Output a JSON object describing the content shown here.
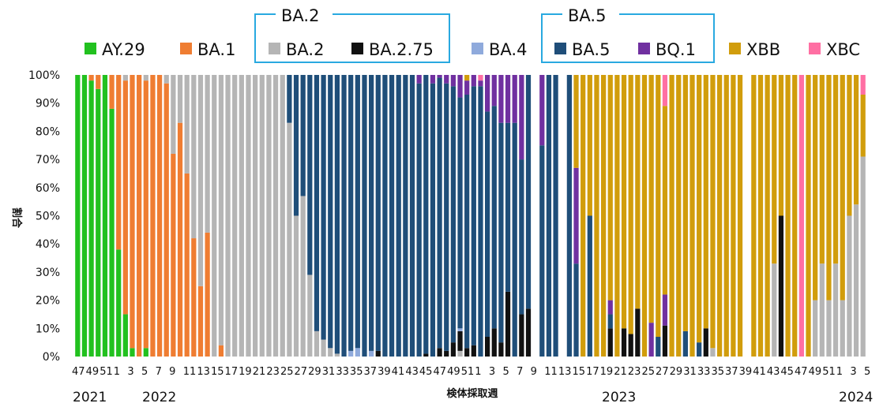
{
  "chart_data": {
    "type": "bar",
    "stacked": true,
    "xlabel": "検体採取週",
    "ylabel": "割合",
    "ylim": [
      0,
      100
    ],
    "yticks": [
      "0%",
      "10%",
      "20%",
      "30%",
      "40%",
      "50%",
      "60%",
      "70%",
      "80%",
      "90%",
      "100%"
    ],
    "xtick_labels": [
      "47",
      "49",
      "51",
      "1",
      "3",
      "5",
      "7",
      "9",
      "11",
      "13",
      "15",
      "17",
      "19",
      "21",
      "23",
      "25",
      "27",
      "29",
      "31",
      "33",
      "35",
      "37",
      "39",
      "41",
      "43",
      "45",
      "47",
      "49",
      "51",
      "1",
      "3",
      "5",
      "7",
      "9",
      "11",
      "13",
      "15",
      "17",
      "19",
      "21",
      "23",
      "25",
      "27",
      "29",
      "31",
      "33",
      "35",
      "37",
      "39",
      "41",
      "43",
      "45",
      "47",
      "49",
      "51",
      "1",
      "3",
      "5"
    ],
    "years": [
      "2021",
      "2022",
      "2023",
      "2024"
    ],
    "groups": [
      {
        "label": "BA.2",
        "members": [
          "BA.2",
          "BA.2.75"
        ]
      },
      {
        "label": "BA.5",
        "members": [
          "BA.5",
          "BQ.1"
        ]
      }
    ],
    "series": [
      {
        "name": "AY.29",
        "color": "#22c11f"
      },
      {
        "name": "BA.1",
        "color": "#ef7d32"
      },
      {
        "name": "BA.2",
        "color": "#b5b5b5"
      },
      {
        "name": "BA.2.75",
        "color": "#111111"
      },
      {
        "name": "BA.4",
        "color": "#8faadc"
      },
      {
        "name": "BA.5",
        "color": "#1f4e79"
      },
      {
        "name": "BQ.1",
        "color": "#7030a0"
      },
      {
        "name": "XBB",
        "color": "#d19d0c"
      },
      {
        "name": "XBC",
        "color": "#ff6fa3"
      }
    ],
    "bars": [
      {
        "AY.29": 100
      },
      {
        "AY.29": 100
      },
      {
        "AY.29": 98,
        "BA.1": 2
      },
      {
        "AY.29": 95,
        "BA.1": 5
      },
      {
        "AY.29": 100
      },
      {
        "AY.29": 88,
        "BA.1": 12
      },
      {
        "AY.29": 38,
        "BA.1": 62
      },
      {
        "AY.29": 15,
        "BA.1": 83,
        "BA.2": 2
      },
      {
        "AY.29": 3,
        "BA.1": 97
      },
      {
        "BA.1": 100
      },
      {
        "AY.29": 3,
        "BA.1": 95,
        "BA.2": 2
      },
      {
        "BA.1": 100
      },
      {
        "BA.1": 100
      },
      {
        "BA.1": 97,
        "BA.2": 3
      },
      {
        "BA.1": 72,
        "BA.2": 28
      },
      {
        "BA.1": 83,
        "BA.2": 17
      },
      {
        "BA.1": 65,
        "BA.2": 35
      },
      {
        "BA.1": 42,
        "BA.2": 58
      },
      {
        "BA.1": 25,
        "BA.2": 75
      },
      {
        "BA.1": 44,
        "BA.2": 56
      },
      {
        "BA.2": 100
      },
      {
        "BA.1": 4,
        "BA.2": 96
      },
      {
        "BA.2": 100
      },
      {
        "BA.2": 100
      },
      {
        "BA.2": 100
      },
      {
        "BA.2": 100
      },
      {
        "BA.2": 100
      },
      {
        "BA.2": 100
      },
      {
        "BA.2": 100
      },
      {
        "BA.2": 100
      },
      {
        "BA.2": 100
      },
      {
        "BA.2": 83,
        "BA.5": 17
      },
      {
        "BA.2": 50,
        "BA.5": 50
      },
      {
        "BA.2": 57,
        "BA.5": 43
      },
      {
        "BA.2": 29,
        "BA.5": 71
      },
      {
        "BA.2": 9,
        "BA.5": 91
      },
      {
        "BA.2": 6,
        "BA.5": 94
      },
      {
        "BA.2": 3,
        "BA.5": 97
      },
      {
        "BA.2": 1,
        "BA.5": 99
      },
      {
        "BA.5": 100
      },
      {
        "BA.5": 98,
        "BA.4": 2
      },
      {
        "BA.5": 97,
        "BA.4": 3
      },
      {
        "BA.5": 100
      },
      {
        "BA.5": 98,
        "BA.4": 2
      },
      {
        "BA.5": 98,
        "BA.2.75": 2
      },
      {
        "BA.5": 100
      },
      {
        "BA.5": 100
      },
      {
        "BA.5": 100
      },
      {
        "BA.5": 100
      },
      {
        "BA.5": 100
      },
      {
        "BA.5": 97,
        "BQ.1": 3
      },
      {
        "BA.5": 99,
        "BA.2.75": 1
      },
      {
        "BA.5": 97,
        "BQ.1": 3
      },
      {
        "BA.5": 96,
        "BA.2.75": 3,
        "BQ.1": 1
      },
      {
        "BA.5": 95,
        "BA.2.75": 2,
        "BQ.1": 3
      },
      {
        "BA.5": 91,
        "BA.2.75": 5,
        "BQ.1": 4
      },
      {
        "BA.2": 2,
        "BA.5": 82,
        "BA.4": 1,
        "BA.2.75": 7,
        "BQ.1": 8
      },
      {
        "BA.5": 90,
        "BA.2.75": 3,
        "BQ.1": 5,
        "XBB": 2
      },
      {
        "BA.5": 92,
        "BA.2.75": 4,
        "BQ.1": 4
      },
      {
        "BA.5": 96,
        "BQ.1": 2,
        "XBC": 2
      },
      {
        "BA.5": 80,
        "BA.2.75": 7,
        "BQ.1": 13
      },
      {
        "BA.5": 79,
        "BA.2.75": 10,
        "BQ.1": 11
      },
      {
        "BA.5": 78,
        "BA.2.75": 5,
        "BQ.1": 17
      },
      {
        "BA.5": 60,
        "BA.2.75": 23,
        "BQ.1": 17
      },
      {
        "BA.5": 83,
        "BQ.1": 17
      },
      {
        "BA.5": 55,
        "BA.2.75": 15,
        "BQ.1": 30
      },
      {
        "BA.5": 83,
        "BA.2.75": 17
      },
      null,
      {
        "BA.5": 75,
        "BQ.1": 25
      },
      {
        "BA.5": 100
      },
      {
        "BA.5": 100
      },
      null,
      {
        "BA.5": 100
      },
      {
        "BA.5": 33,
        "BQ.1": 34,
        "XBB": 33
      },
      {
        "XBB": 100
      },
      {
        "BA.5": 50,
        "XBB": 50
      },
      {
        "XBB": 100
      },
      {
        "XBB": 100
      },
      {
        "BA.5": 5,
        "BA.2.75": 10,
        "BQ.1": 5,
        "XBB": 80
      },
      {
        "XBB": 100
      },
      {
        "BA.2.75": 10,
        "XBB": 90
      },
      {
        "BA.2.75": 8,
        "XBB": 92
      },
      {
        "BA.2.75": 17,
        "XBB": 83
      },
      {
        "XBB": 100
      },
      {
        "BQ.1": 12,
        "XBB": 88
      },
      {
        "BA.5": 7,
        "XBB": 93
      },
      {
        "BA.2.75": 11,
        "BQ.1": 11,
        "XBB": 67,
        "XBC": 11
      },
      {
        "XBB": 100
      },
      {
        "XBB": 100
      },
      {
        "BA.5": 9,
        "XBB": 91
      },
      {
        "XBB": 100
      },
      {
        "BA.5": 5,
        "XBB": 95
      },
      {
        "BA.2.75": 10,
        "XBB": 90
      },
      {
        "BA.2": 3,
        "XBB": 97
      },
      {
        "XBB": 100
      },
      {
        "XBB": 100
      },
      {
        "XBB": 100
      },
      {
        "XBB": 100
      },
      null,
      {
        "XBB": 100
      },
      {
        "XBB": 100
      },
      {
        "XBB": 100
      },
      {
        "BA.2": 33,
        "XBB": 67
      },
      {
        "BA.2.75": 50,
        "XBB": 50
      },
      {
        "XBB": 100
      },
      {
        "XBB": 100
      },
      {
        "XBC": 100
      },
      {
        "XBB": 100
      },
      {
        "BA.2": 20,
        "XBB": 80
      },
      {
        "BA.2": 33,
        "XBB": 67
      },
      {
        "BA.2": 20,
        "XBB": 80
      },
      {
        "BA.2": 33,
        "XBB": 67
      },
      {
        "BA.2": 20,
        "XBB": 80
      },
      {
        "BA.2": 50,
        "XBB": 50
      },
      {
        "BA.2": 54,
        "XBB": 46
      },
      {
        "BA.2": 71,
        "XBB": 22,
        "XBC": 7
      }
    ]
  }
}
